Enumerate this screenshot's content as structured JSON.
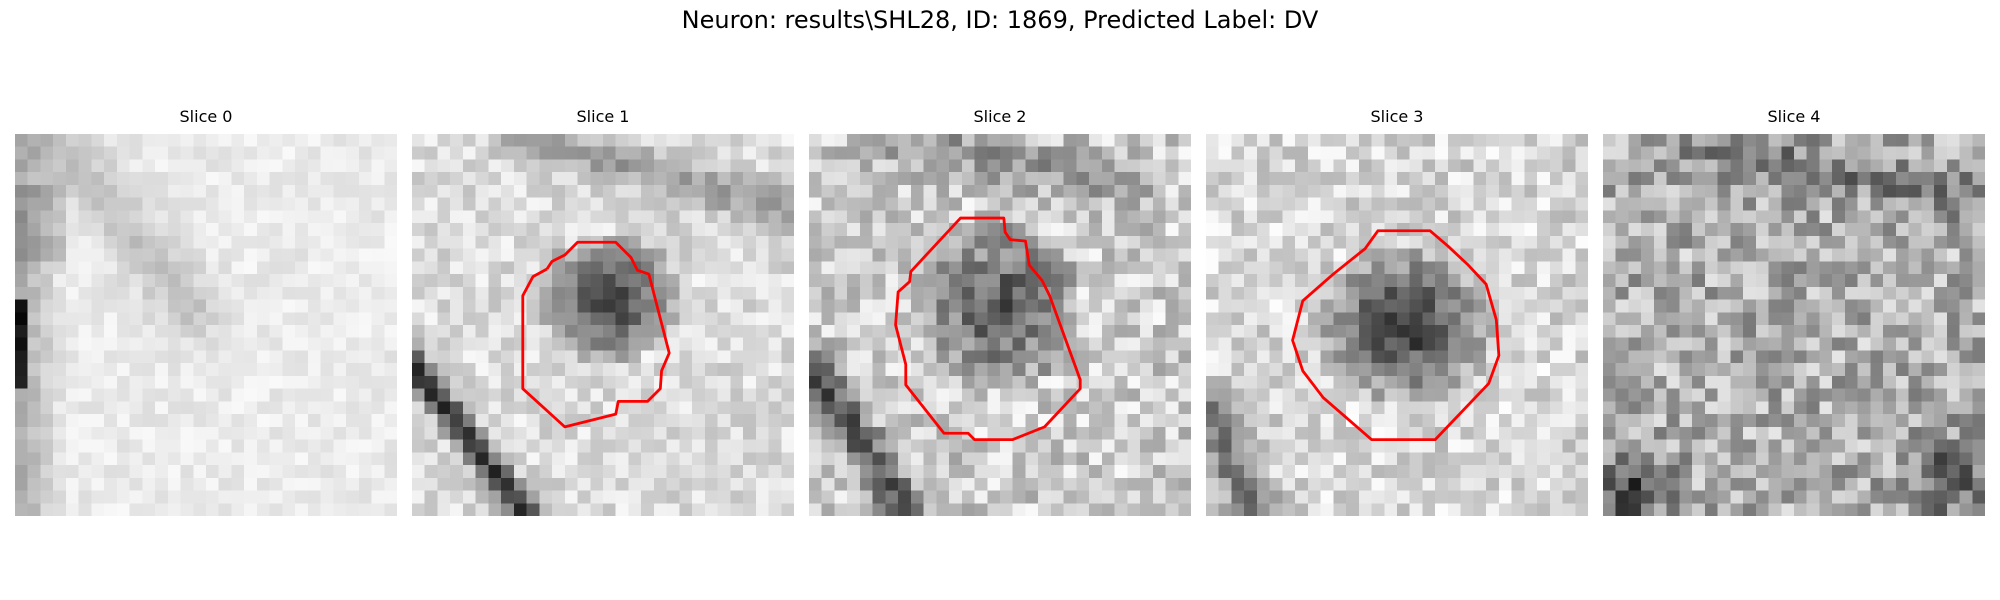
{
  "figure": {
    "title": "Neuron: results\\SHL28, ID: 1869, Predicted Label: DV",
    "contour_color": "#ff0000"
  },
  "panels": [
    {
      "title": "Slice 0",
      "has_contour": false
    },
    {
      "title": "Slice 1",
      "has_contour": true
    },
    {
      "title": "Slice 2",
      "has_contour": true
    },
    {
      "title": "Slice 3",
      "has_contour": true
    },
    {
      "title": "Slice 4",
      "has_contour": false
    }
  ]
}
